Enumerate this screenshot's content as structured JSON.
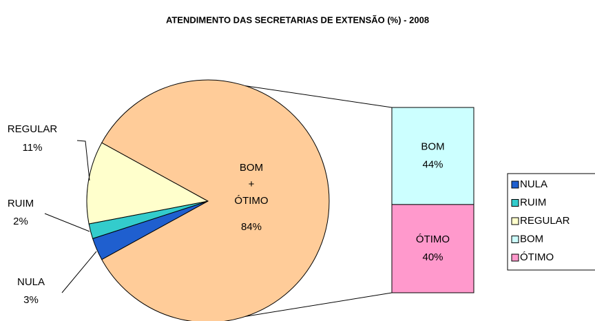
{
  "chart_data": {
    "type": "bar_of_pie",
    "title": "ATENDIMENTO DAS SECRETARIAS DE EXTENSÃO (%) - 2008",
    "pie": {
      "categories": [
        "NULA",
        "RUIM",
        "REGULAR",
        "BOM\n+\nÓTIMO"
      ],
      "values": [
        3,
        2,
        11,
        84
      ],
      "value_labels": [
        "3%",
        "2%",
        "11%",
        "84%"
      ],
      "colors": [
        "#1f5fcf",
        "#33cccc",
        "#ffffcc",
        "#ffcc99"
      ]
    },
    "bar": {
      "categories": [
        "BOM",
        "ÓTIMO"
      ],
      "values": [
        44,
        40
      ],
      "value_labels": [
        "44%",
        "40%"
      ],
      "colors": [
        "#ccffff",
        "#ff99cc"
      ]
    },
    "legend": "right"
  }
}
